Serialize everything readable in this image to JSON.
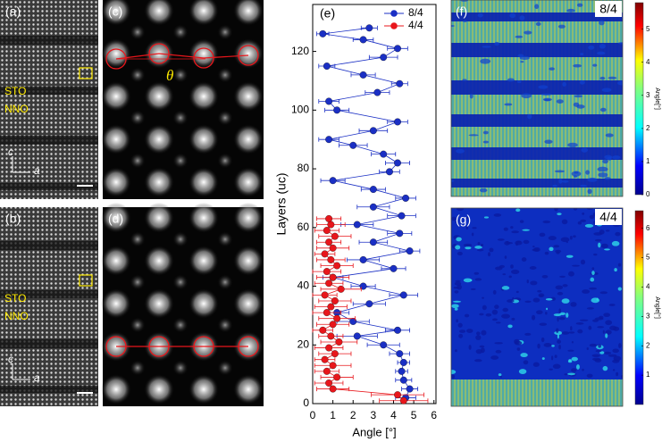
{
  "panels": {
    "a": "(a)",
    "b": "(b)",
    "c": "(c)",
    "d": "(d)",
    "f": "(f)",
    "g": "(g)"
  },
  "stem_labels": {
    "sto": "STO",
    "nno": "NNO",
    "c_axis": "c",
    "a_axis": "a",
    "theta": "θ"
  },
  "maps": [
    {
      "tag": "8/4",
      "colorbar": {
        "label": "Angle[°]",
        "lim": [
          0,
          5.8
        ],
        "ticks": [
          0,
          1,
          2,
          3,
          4,
          5
        ]
      }
    },
    {
      "tag": "4/4",
      "colorbar": {
        "label": "Angle[°]",
        "lim": [
          0,
          6.6
        ],
        "ticks": [
          1,
          2,
          3,
          4,
          5,
          6
        ]
      }
    }
  ],
  "chart_data": {
    "type": "scatter",
    "panel": "(e)",
    "xlabel": "Angle [°]",
    "ylabel": "Layers (uc)",
    "xlim": [
      0,
      6.1
    ],
    "ylim": [
      0,
      136
    ],
    "xticks": [
      0,
      1,
      2,
      3,
      4,
      5,
      6
    ],
    "yticks": [
      0,
      20,
      40,
      60,
      80,
      100,
      120
    ],
    "legend": "upper right",
    "series": [
      {
        "name": "8/4",
        "color": "#1a2fc4",
        "y": [
          2,
          5,
          8,
          11,
          14,
          17,
          20,
          23,
          25,
          28,
          31,
          34,
          37,
          40,
          43,
          46,
          49,
          52,
          55,
          58,
          61,
          64,
          67,
          70,
          73,
          76,
          79,
          82,
          85,
          88,
          90,
          93,
          96,
          100,
          103,
          106,
          109,
          112,
          115,
          118,
          121,
          124,
          126,
          128
        ],
        "x": [
          4.6,
          4.8,
          4.5,
          4.4,
          4.5,
          4.3,
          3.5,
          2.2,
          4.2,
          2.0,
          1.2,
          2.8,
          4.5,
          2.5,
          1.0,
          4.0,
          2.5,
          4.8,
          3.0,
          4.3,
          2.2,
          4.4,
          3.0,
          4.6,
          3.0,
          1.0,
          3.8,
          4.2,
          3.5,
          2.0,
          0.8,
          3.0,
          4.2,
          1.2,
          0.8,
          3.2,
          4.3,
          2.5,
          0.7,
          3.5,
          4.2,
          2.5,
          0.5,
          2.8
        ],
        "xerr": [
          0.5,
          0.4,
          0.4,
          0.3,
          0.3,
          0.5,
          0.8,
          1.0,
          0.6,
          0.8,
          0.6,
          0.8,
          0.7,
          0.6,
          0.5,
          0.6,
          0.8,
          0.5,
          0.7,
          0.6,
          0.8,
          0.7,
          0.8,
          0.5,
          0.6,
          0.6,
          0.5,
          0.6,
          0.6,
          0.7,
          0.5,
          0.7,
          0.5,
          0.6,
          0.5,
          0.6,
          0.4,
          0.6,
          0.4,
          0.7,
          0.5,
          0.5,
          0.3,
          0.4
        ]
      },
      {
        "name": "4/4",
        "color": "#e8161b",
        "y": [
          1,
          3,
          5,
          7,
          9,
          11,
          13,
          15,
          17,
          19,
          21,
          23,
          25,
          27,
          29,
          31,
          33,
          35,
          37,
          39,
          41,
          43,
          45,
          47,
          49,
          51,
          53,
          55,
          57,
          59,
          61,
          63
        ],
        "x": [
          4.5,
          4.2,
          1.0,
          0.8,
          1.2,
          0.7,
          1.0,
          0.6,
          1.1,
          0.8,
          1.3,
          0.9,
          0.5,
          1.0,
          1.2,
          0.7,
          0.9,
          1.1,
          0.6,
          1.4,
          0.8,
          1.0,
          0.7,
          1.2,
          0.9,
          0.6,
          1.0,
          0.8,
          1.1,
          0.7,
          0.9,
          0.8
        ],
        "xerr": [
          1.2,
          1.3,
          0.8,
          0.7,
          0.8,
          0.6,
          0.9,
          0.5,
          0.8,
          0.7,
          0.9,
          0.6,
          0.5,
          0.8,
          0.9,
          0.7,
          0.8,
          0.8,
          0.6,
          1.0,
          0.7,
          0.8,
          0.7,
          0.8,
          0.7,
          0.5,
          0.8,
          0.6,
          0.8,
          0.6,
          0.7,
          0.6
        ]
      }
    ]
  }
}
